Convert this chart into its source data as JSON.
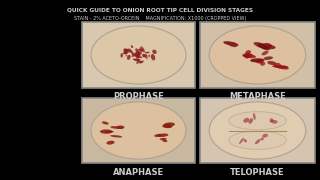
{
  "title_line1": "QUICK GUIDE TO ONION ROOT TIP CELL DIVISION STAGES",
  "title_line2": "STAIN - 2% ACETO-ORCEIN    MAGNIFICATION: X1000 (CROPPED VIEW)",
  "labels": [
    "PROPHASE",
    "METAPHASE",
    "ANAPHASE",
    "TELOPHASE"
  ],
  "bg_color": "#000000",
  "title_color": "#cccccc",
  "label_color": "#cccccc",
  "title_fontsize": 4.2,
  "subtitle_fontsize": 3.5,
  "label_fontsize": 6.0,
  "panel_bg_prophase": "#d8c8b0",
  "panel_bg_metaphase": "#d0c0a8",
  "panel_bg_anaphase": "#c8b8a0",
  "panel_bg_telophase": "#d4c4b0",
  "cell_bg": "#e8dcc8",
  "chrom_prophase": "#8B2020",
  "chrom_metaphase": "#7B1515",
  "chrom_anaphase": "#8B2010",
  "chrom_telophase": "#9B3030",
  "panel_edge": "#888888"
}
